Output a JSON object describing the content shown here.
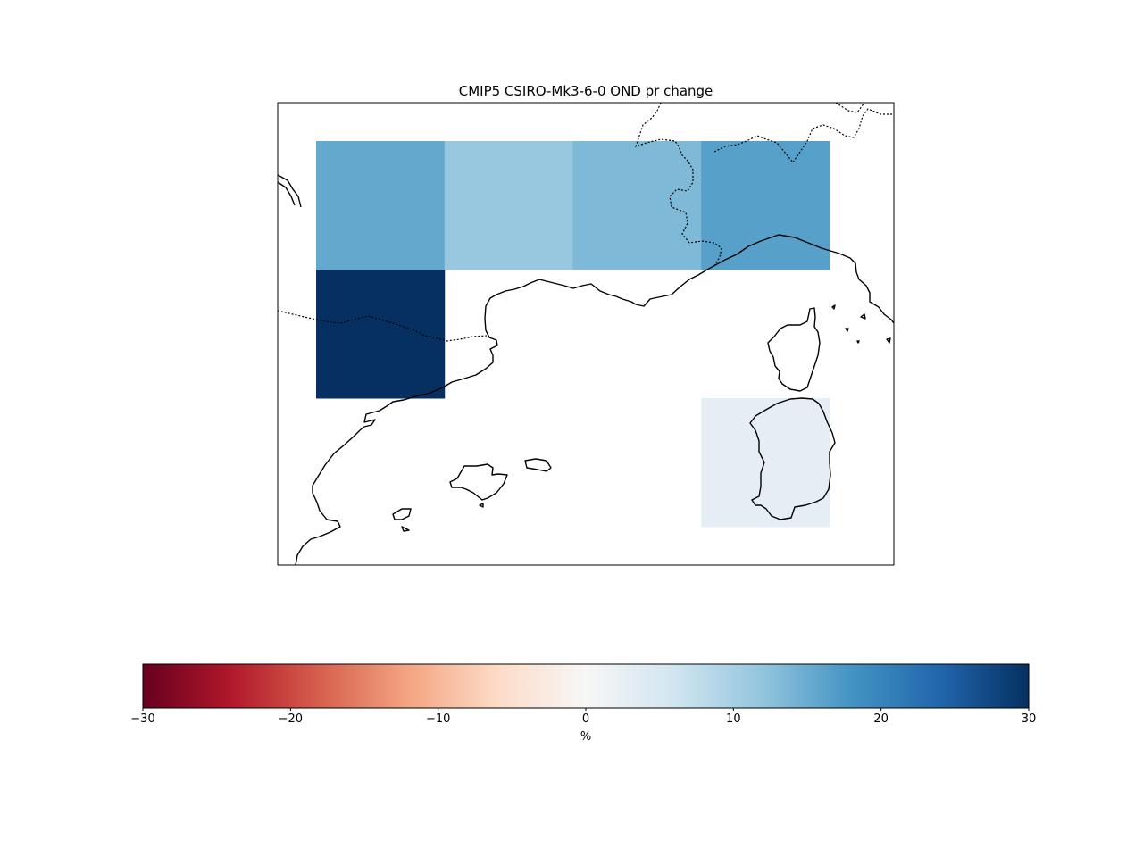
{
  "title": "CMIP5 CSIRO-Mk3-6-0 OND pr change",
  "colorbar": {
    "label": "%",
    "min": -30,
    "max": 30,
    "ticks": [
      "−30",
      "−20",
      "−10",
      "0",
      "10",
      "20",
      "30"
    ],
    "tick_values": [
      -30,
      -20,
      -10,
      0,
      10,
      20,
      30
    ],
    "colormap": "RdBu",
    "stops": [
      "#67001f",
      "#b2182b",
      "#d6604d",
      "#f4a582",
      "#fddbc7",
      "#f7f7f7",
      "#d1e5f0",
      "#92c5de",
      "#4393c3",
      "#2166ac",
      "#053061"
    ]
  },
  "grid_cells": [
    {
      "row": 0,
      "col": 0,
      "value": 15.5
    },
    {
      "row": 0,
      "col": 1,
      "value": 11.5
    },
    {
      "row": 0,
      "col": 2,
      "value": 13.5
    },
    {
      "row": 0,
      "col": 3,
      "value": 16.5
    },
    {
      "row": 1,
      "col": 0,
      "value": 30
    },
    {
      "row": 2,
      "col": 3,
      "value": 3
    }
  ]
}
